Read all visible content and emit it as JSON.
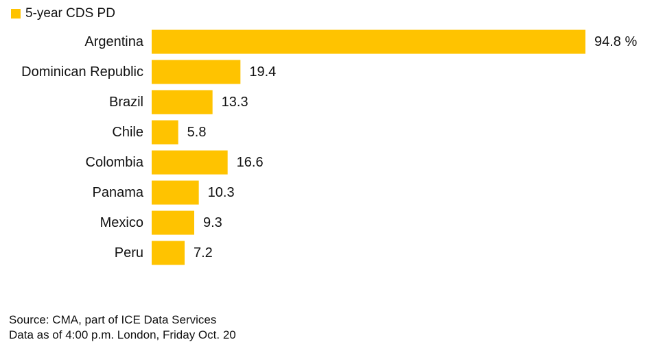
{
  "chart_data": {
    "type": "bar",
    "orientation": "horizontal",
    "categories": [
      "Argentina",
      "Dominican Republic",
      "Brazil",
      "Chile",
      "Colombia",
      "Panama",
      "Mexico",
      "Peru"
    ],
    "series": [
      {
        "name": "5-year CDS PD",
        "values": [
          94.8,
          19.4,
          13.3,
          5.8,
          16.6,
          10.3,
          9.3,
          7.2
        ],
        "color": "#FFC300"
      }
    ],
    "value_labels": [
      "94.8 %",
      "19.4",
      "13.3",
      "5.8",
      "16.6",
      "10.3",
      "9.3",
      "7.2"
    ],
    "unit": "%",
    "xlim": [
      0,
      100
    ],
    "grid": false,
    "legend_position": "top-left"
  },
  "footer": {
    "source": "Source: CMA, part of ICE Data Services",
    "note": "Data as of 4:00 p.m. London, Friday Oct. 20"
  }
}
